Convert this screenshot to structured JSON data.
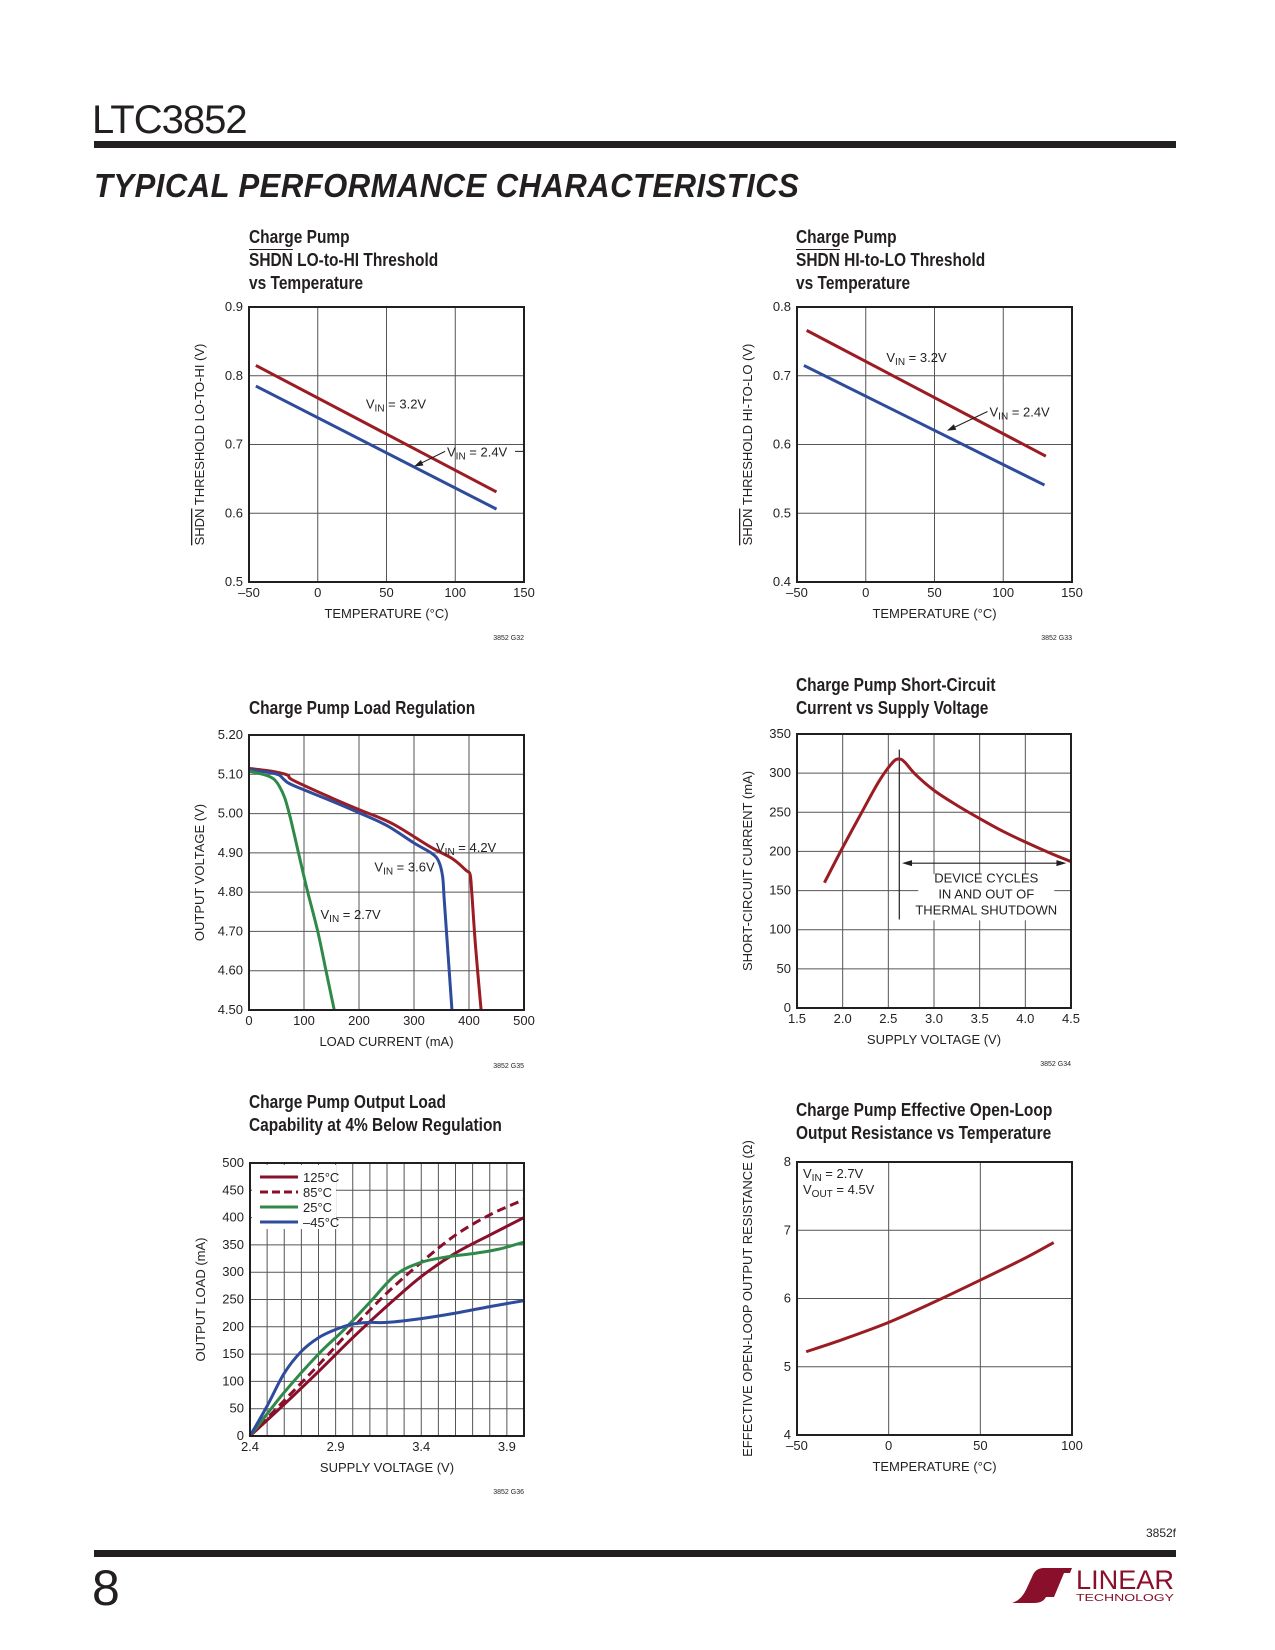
{
  "header": {
    "part_number": "LTC3852",
    "section_title": "TYPICAL PERFORMANCE CHARACTERISTICS"
  },
  "footer": {
    "doc_code": "3852f",
    "page_number": "8",
    "logo_text": "LINEAR TECHNOLOGY"
  },
  "colors": {
    "red": "#9b1c22",
    "blue": "#2e4b9c",
    "green": "#2f8a4a",
    "dark_red": "#8a0f2a",
    "grid": "#555555",
    "frame": "#231f20"
  },
  "chart_data": [
    {
      "id": "g32",
      "type": "line",
      "title_lines": [
        "Charge Pump",
        "SHDN LO-to-HI Threshold",
        "vs Temperature"
      ],
      "overline_word": "SHDN",
      "xlabel": "TEMPERATURE (°C)",
      "ylabel_overline": "SHDN",
      "ylabel": " THRESHOLD LO-TO-HI (V)",
      "xlim": [
        -50,
        150
      ],
      "ylim": [
        0.5,
        0.9
      ],
      "xticks": [
        -50,
        0,
        50,
        100,
        150
      ],
      "xtick_labels": [
        "–50",
        "0",
        "50",
        "100",
        "150"
      ],
      "yticks": [
        0.5,
        0.6,
        0.7,
        0.8,
        0.9
      ],
      "ytick_labels": [
        "0.5",
        "0.6",
        "0.7",
        "0.8",
        "0.9"
      ],
      "grid": true,
      "code": "3852 G32",
      "series": [
        {
          "name": "VIN = 3.2V",
          "color": "#9b1c22",
          "x": [
            -45,
            130
          ],
          "y": [
            0.815,
            0.631
          ]
        },
        {
          "name": "VIN = 2.4V",
          "color": "#2e4b9c",
          "x": [
            -45,
            130
          ],
          "y": [
            0.785,
            0.606
          ]
        }
      ],
      "annotations": [
        {
          "v": "V",
          "sub": "IN",
          "rest": " = 3.2V",
          "at": [
            35,
            0.76
          ]
        },
        {
          "v": "V",
          "sub": "IN",
          "rest": " = 2.4V",
          "at": [
            94,
            0.69
          ],
          "arrow_to": [
            70,
            0.668
          ]
        }
      ]
    },
    {
      "id": "g33",
      "type": "line",
      "title_lines": [
        "Charge Pump",
        "SHDN HI-to-LO Threshold",
        "vs Temperature"
      ],
      "overline_word": "SHDN",
      "xlabel": "TEMPERATURE (°C)",
      "ylabel_overline": "SHDN",
      "ylabel": " THRESHOLD HI-TO-LO (V)",
      "xlim": [
        -50,
        150
      ],
      "ylim": [
        0.4,
        0.8
      ],
      "xticks": [
        -50,
        0,
        50,
        100,
        150
      ],
      "xtick_labels": [
        "–50",
        "0",
        "50",
        "100",
        "150"
      ],
      "yticks": [
        0.4,
        0.5,
        0.6,
        0.7,
        0.8
      ],
      "ytick_labels": [
        "0.4",
        "0.5",
        "0.6",
        "0.7",
        "0.8"
      ],
      "grid": true,
      "code": "3852 G33",
      "series": [
        {
          "name": "VIN = 3.2V",
          "color": "#9b1c22",
          "x": [
            -43,
            131
          ],
          "y": [
            0.766,
            0.583
          ]
        },
        {
          "name": "VIN = 2.4V",
          "color": "#2e4b9c",
          "x": [
            -45,
            130
          ],
          "y": [
            0.715,
            0.541
          ]
        }
      ],
      "annotations": [
        {
          "v": "V",
          "sub": "IN",
          "rest": " = 3.2V",
          "at": [
            15,
            0.727
          ]
        },
        {
          "v": "V",
          "sub": "IN",
          "rest": " = 2.4V",
          "at": [
            90,
            0.648
          ],
          "arrow_to": [
            59,
            0.62
          ]
        }
      ]
    },
    {
      "id": "g35",
      "type": "line",
      "title_lines": [
        "Charge Pump Load Regulation"
      ],
      "xlabel": "LOAD CURRENT (mA)",
      "ylabel": "OUTPUT VOLTAGE (V)",
      "xlim": [
        0,
        500
      ],
      "ylim": [
        4.5,
        5.2
      ],
      "xticks": [
        0,
        100,
        200,
        300,
        400,
        500
      ],
      "xtick_labels": [
        "0",
        "100",
        "200",
        "300",
        "400",
        "500"
      ],
      "yticks": [
        4.5,
        4.6,
        4.7,
        4.8,
        4.9,
        5.0,
        5.1,
        5.2
      ],
      "ytick_labels": [
        "4.50",
        "4.60",
        "4.70",
        "4.80",
        "4.90",
        "5.00",
        "5.10",
        "5.20"
      ],
      "grid": true,
      "code": "3852 G35",
      "series": [
        {
          "name": "VIN = 4.2V",
          "color": "#9b1c22",
          "x": [
            0,
            40,
            70,
            80,
            150,
            200,
            260,
            330,
            370,
            395,
            402,
            405,
            412,
            422
          ],
          "y": [
            5.115,
            5.108,
            5.098,
            5.085,
            5.04,
            5.01,
            4.975,
            4.915,
            4.885,
            4.855,
            4.845,
            4.8,
            4.66,
            4.5
          ]
        },
        {
          "name": "VIN = 3.6V",
          "color": "#2e4b9c",
          "x": [
            0,
            40,
            55,
            65,
            80,
            150,
            200,
            250,
            300,
            333,
            345,
            352,
            355,
            362,
            369
          ],
          "y": [
            5.112,
            5.104,
            5.098,
            5.085,
            5.072,
            5.032,
            5.002,
            4.97,
            4.925,
            4.898,
            4.878,
            4.84,
            4.78,
            4.64,
            4.5
          ]
        },
        {
          "name": "VIN = 2.7V",
          "color": "#2f8a4a",
          "x": [
            0,
            30,
            45,
            55,
            65,
            75,
            90,
            105,
            125,
            140,
            155
          ],
          "y": [
            5.108,
            5.098,
            5.088,
            5.07,
            5.04,
            4.99,
            4.9,
            4.81,
            4.7,
            4.6,
            4.5
          ]
        }
      ],
      "annotations": [
        {
          "v": "V",
          "sub": "IN",
          "rest": " = 4.2V",
          "at": [
            340,
            4.915
          ]
        },
        {
          "v": "V",
          "sub": "IN",
          "rest": " = 3.6V",
          "at": [
            228,
            4.865
          ]
        },
        {
          "v": "V",
          "sub": "IN",
          "rest": " = 2.7V",
          "at": [
            130,
            4.745
          ]
        }
      ]
    },
    {
      "id": "g34",
      "type": "line",
      "title_lines": [
        "Charge Pump Short-Circuit",
        "Current vs Supply Voltage"
      ],
      "xlabel": "SUPPLY VOLTAGE (V)",
      "ylabel": "SHORT-CIRCUIT CURRENT (mA)",
      "xlim": [
        1.5,
        4.5
      ],
      "ylim": [
        0,
        350
      ],
      "xticks": [
        1.5,
        2.0,
        2.5,
        3.0,
        3.5,
        4.0,
        4.5
      ],
      "xtick_labels": [
        "1.5",
        "2.0",
        "2.5",
        "3.0",
        "3.5",
        "4.0",
        "4.5"
      ],
      "yticks": [
        0,
        50,
        100,
        150,
        200,
        250,
        300,
        350
      ],
      "ytick_labels": [
        "0",
        "50",
        "100",
        "150",
        "200",
        "250",
        "300",
        "350"
      ],
      "grid": true,
      "code": "3852 G34",
      "series": [
        {
          "name": "Short-circuit current",
          "color": "#9b1c22",
          "x": [
            1.8,
            2.0,
            2.2,
            2.4,
            2.55,
            2.62,
            2.68,
            2.8,
            3.0,
            3.25,
            3.5,
            3.75,
            4.0,
            4.25,
            4.5
          ],
          "y": [
            160,
            205,
            248,
            290,
            314,
            318,
            314,
            298,
            278,
            259,
            242,
            226,
            212,
            199,
            187
          ]
        }
      ],
      "annotation_lines": [
        "DEVICE CYCLES",
        "IN AND OUT OF",
        "THERMAL SHUTDOWN"
      ],
      "marker_x": 2.62,
      "arrow_range": [
        2.65,
        4.45
      ],
      "arrow_y": 185
    },
    {
      "id": "g36",
      "type": "line",
      "title_lines": [
        "Charge Pump Output Load",
        "Capability at 4% Below Regulation"
      ],
      "xlabel": "SUPPLY VOLTAGE (V)",
      "ylabel": "OUTPUT LOAD (mA)",
      "xlim": [
        2.4,
        4.0
      ],
      "ylim": [
        0,
        500
      ],
      "xticks": [
        2.4,
        2.9,
        3.4,
        3.9
      ],
      "xtick_labels": [
        "2.4",
        "2.9",
        "3.4",
        "3.9"
      ],
      "yticks": [
        0,
        50,
        100,
        150,
        200,
        250,
        300,
        350,
        400,
        450,
        500
      ],
      "ytick_labels": [
        "0",
        "50",
        "100",
        "150",
        "200",
        "250",
        "300",
        "350",
        "400",
        "450",
        "500"
      ],
      "minor_x_step": 0.1,
      "grid": true,
      "code": "3852 G36",
      "legend_position": "top-left",
      "series": [
        {
          "name": "125°C",
          "color": "#8a0f2a",
          "dash": false,
          "x": [
            2.4,
            2.6,
            2.8,
            3.0,
            3.2,
            3.4,
            3.6,
            3.8,
            4.0
          ],
          "y": [
            0,
            58,
            118,
            180,
            238,
            292,
            335,
            368,
            400
          ]
        },
        {
          "name": "85°C",
          "color": "#8a0f2a",
          "dash": true,
          "x": [
            2.4,
            2.6,
            2.8,
            3.0,
            3.2,
            3.4,
            3.6,
            3.8,
            4.0
          ],
          "y": [
            0,
            65,
            130,
            198,
            262,
            318,
            368,
            405,
            433
          ]
        },
        {
          "name": "25°C",
          "color": "#2f8a4a",
          "dash": false,
          "x": [
            2.4,
            2.6,
            2.8,
            2.95,
            3.1,
            3.25,
            3.4,
            3.55,
            3.7,
            3.85,
            4.0
          ],
          "y": [
            0,
            80,
            150,
            195,
            245,
            295,
            318,
            328,
            334,
            342,
            355
          ]
        },
        {
          "name": "–45°C",
          "color": "#2e4b9c",
          "dash": false,
          "x": [
            2.4,
            2.5,
            2.6,
            2.7,
            2.8,
            2.9,
            3.0,
            3.1,
            3.2,
            3.4,
            3.6,
            3.8,
            4.0
          ],
          "y": [
            0,
            55,
            115,
            155,
            180,
            195,
            205,
            208,
            208,
            215,
            225,
            237,
            248
          ]
        }
      ]
    },
    {
      "id": "resistance",
      "type": "line",
      "title_lines": [
        "Charge Pump Effective Open-Loop",
        "Output Resistance vs Temperature"
      ],
      "xlabel": "TEMPERATURE (°C)",
      "ylabel": "EFFECTIVE OPEN-LOOP OUTPUT RESISTANCE (Ω)",
      "xlim": [
        -50,
        100
      ],
      "ylim": [
        4,
        8
      ],
      "xticks": [
        -50,
        0,
        50,
        100
      ],
      "xtick_labels": [
        "–50",
        "0",
        "50",
        "100"
      ],
      "yticks": [
        4,
        5,
        6,
        7,
        8
      ],
      "ytick_labels": [
        "4",
        "5",
        "6",
        "7",
        "8"
      ],
      "grid": true,
      "series": [
        {
          "name": "Output resistance",
          "color": "#9b1c22",
          "x": [
            -45,
            -25,
            0,
            25,
            50,
            75,
            90
          ],
          "y": [
            5.22,
            5.4,
            5.65,
            5.95,
            6.27,
            6.6,
            6.82
          ]
        }
      ],
      "conditions": [
        {
          "v": "V",
          "sub": "IN",
          "rest": " = 2.7V"
        },
        {
          "v": "V",
          "sub": "OUT",
          "rest": " = 4.5V"
        }
      ]
    }
  ]
}
